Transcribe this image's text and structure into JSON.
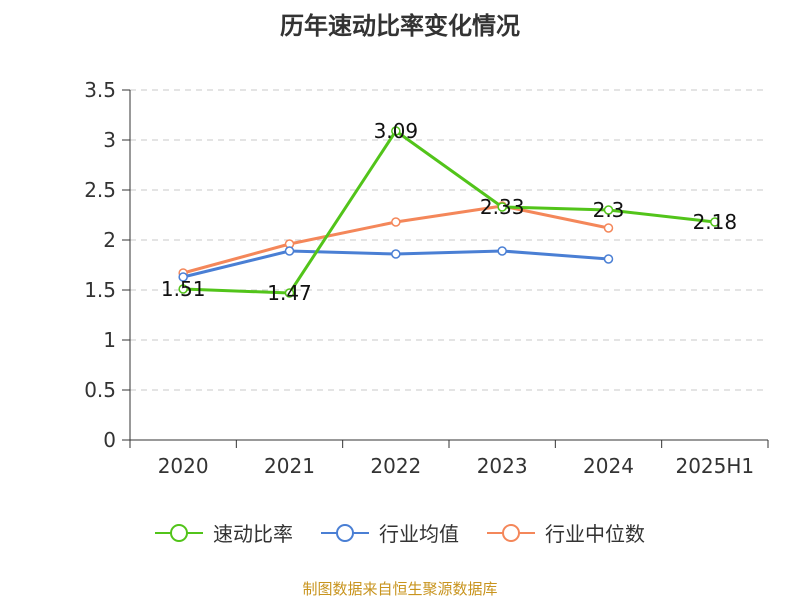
{
  "chart_data": {
    "type": "line",
    "title": "历年速动比率变化情况",
    "categories": [
      "2020",
      "2021",
      "2022",
      "2023",
      "2024",
      "2025H1"
    ],
    "ylim": [
      0,
      3.5
    ],
    "yticks": [
      "0",
      "0.5",
      "1",
      "1.5",
      "2",
      "2.5",
      "3",
      "3.5"
    ],
    "grid": true,
    "legend_position": "bottom",
    "series": [
      {
        "name": "速动比率",
        "color": "#52c41a",
        "values": [
          1.51,
          1.47,
          3.09,
          2.33,
          2.3,
          2.18
        ],
        "labels": [
          "1.51",
          "1.47",
          "3.09",
          "2.33",
          "2.3",
          "2.18"
        ]
      },
      {
        "name": "行业均值",
        "color": "#4a7fd4",
        "values": [
          1.63,
          1.89,
          1.86,
          1.89,
          1.81,
          null
        ]
      },
      {
        "name": "行业中位数",
        "color": "#f4875a",
        "values": [
          1.67,
          1.96,
          2.18,
          2.34,
          2.12,
          null
        ]
      }
    ]
  },
  "source": "制图数据来自恒生聚源数据库"
}
